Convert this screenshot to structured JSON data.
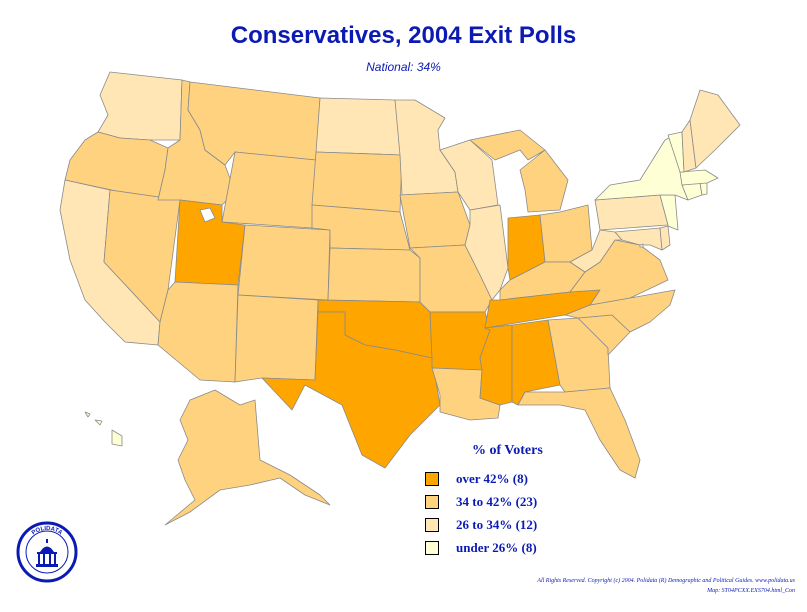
{
  "title": "Conservatives, 2004 Exit Polls",
  "subtitle": "National: 34%",
  "legend": {
    "title": "% of Voters",
    "items": [
      {
        "label": "over 42% (8)",
        "color": "#ffa500"
      },
      {
        "label": "34 to 42% (23)",
        "color": "#ffd27f"
      },
      {
        "label": "26 to 34% (12)",
        "color": "#ffe6b4"
      },
      {
        "label": "under 26% (8)",
        "color": "#ffffd5"
      }
    ]
  },
  "categories": {
    "over42": [
      "UT",
      "IN",
      "TX",
      "OK",
      "AR",
      "TN",
      "MS",
      "AL"
    ],
    "c34to42": [
      "OR",
      "ID",
      "MT",
      "WY",
      "NV",
      "AZ",
      "NM",
      "CO",
      "SD",
      "NE",
      "KS",
      "MO",
      "IA",
      "MI",
      "OH",
      "KY",
      "VA",
      "NC",
      "SC",
      "GA",
      "FL",
      "LA",
      "AK"
    ],
    "c26to34": [
      "WA",
      "CA",
      "ND",
      "MN",
      "WI",
      "IL",
      "WV",
      "PA",
      "MD",
      "DE",
      "ME",
      "NH"
    ],
    "under26": [
      "NY",
      "VT",
      "MA",
      "RI",
      "CT",
      "NJ",
      "HI",
      "DC"
    ]
  },
  "logo_text": "POLIDATA",
  "footer": {
    "line1": "All Rights Reserved. Copyright (c) 2004. Polidata (R) Demographic and Political Guides. www.polidata.us",
    "line2": "Map: ST04PCXX.EXS704.html_Con"
  }
}
